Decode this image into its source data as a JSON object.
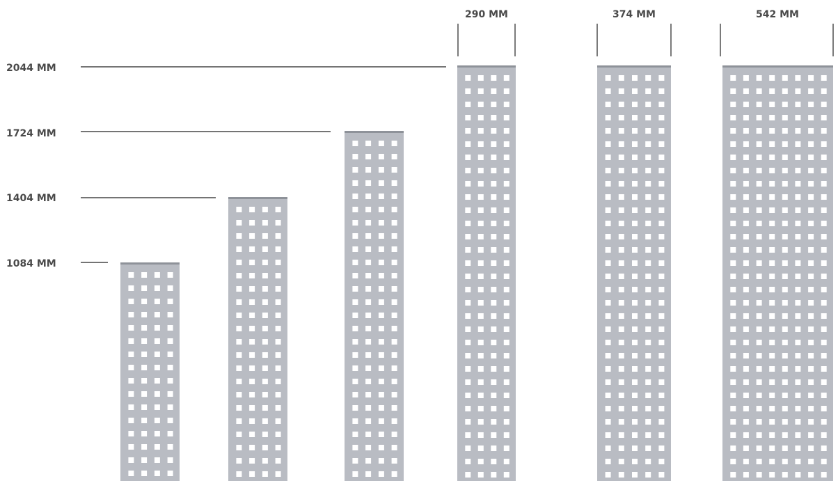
{
  "height_labels": [
    "2044 MM",
    "1724 MM",
    "1404 MM",
    "1084 MM"
  ],
  "width_labels": [
    "290 MM",
    "374 MM",
    "542 MM"
  ],
  "panel_heights_mm": [
    1084,
    1404,
    1724,
    2044,
    2044,
    2044
  ],
  "panel_widths_mm": [
    290,
    290,
    290,
    290,
    374,
    542
  ],
  "hole_columns": [
    4,
    4,
    4,
    4,
    5,
    8
  ],
  "colors": {
    "panel": "#b9bcc3",
    "panel_top": "#8e9299",
    "hole": "#ffffff",
    "line": "#222222",
    "text": "#4a4a4a"
  }
}
